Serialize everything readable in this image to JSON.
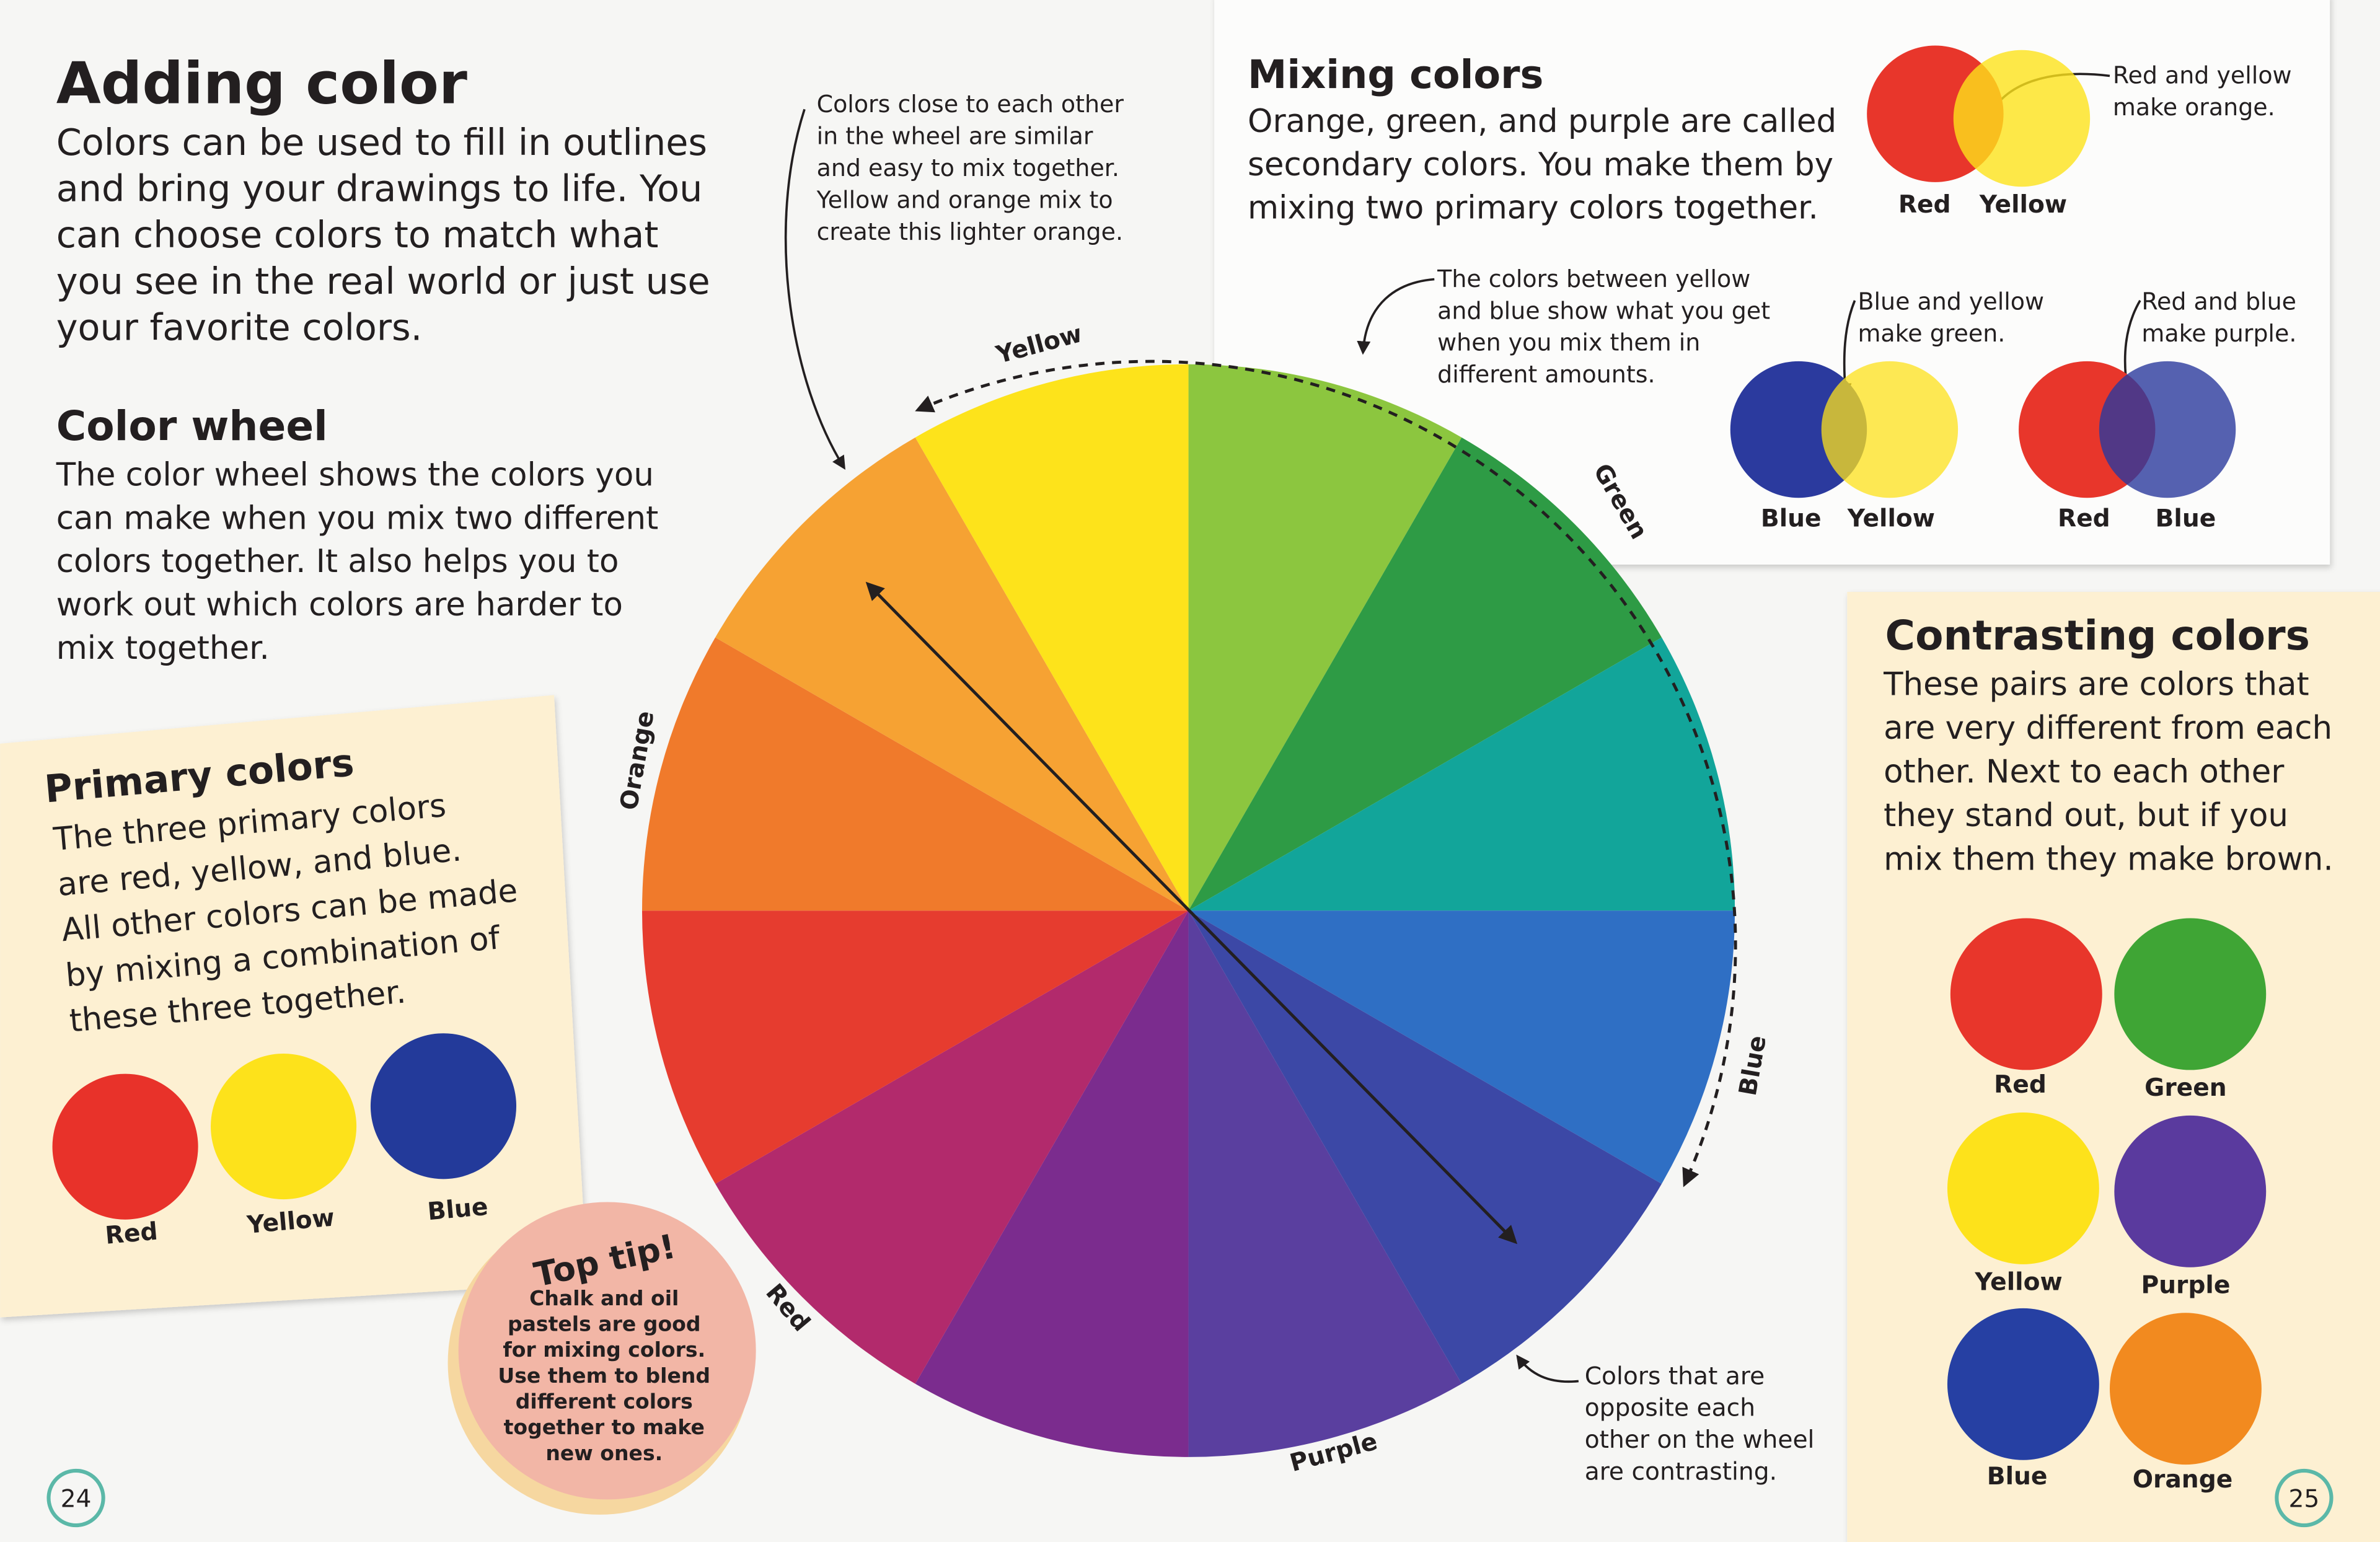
{
  "left_page": {
    "title": "Adding color",
    "intro": [
      "Colors can be used to fill in outlines",
      "and bring your drawings to life. You",
      "can choose colors to match what",
      "you see in the real world or just use",
      "your favorite colors."
    ],
    "wheel_heading": "Color wheel",
    "wheel_text": [
      "The color wheel shows the colors you",
      "can make when you mix two different",
      "colors together. It also helps you to",
      "work out which colors are harder to",
      "mix together."
    ],
    "primary": {
      "heading": "Primary colors",
      "text": [
        "The three primary colors",
        "are red, yellow, and blue.",
        "All other colors can be made",
        "by mixing a combination of",
        "these three together."
      ],
      "swatches": [
        "Red",
        "Yellow",
        "Blue"
      ]
    },
    "tip": {
      "heading": "Top tip!",
      "text": [
        "Chalk and oil",
        "pastels are good",
        "for mixing colors.",
        "Use them to blend",
        "different colors",
        "together to make",
        "new ones."
      ]
    },
    "page_number": 24
  },
  "wheel": {
    "labels": [
      "Yellow",
      "Green",
      "Blue",
      "Purple",
      "Red",
      "Orange"
    ],
    "note_similar": [
      "Colors close to each other",
      "in the wheel are similar",
      "and easy to mix together.",
      "Yellow and orange mix to",
      "create this lighter orange."
    ],
    "note_between": [
      "The colors between yellow",
      "and blue show what you get",
      "when you mix them in",
      "different amounts."
    ],
    "note_opposite": [
      "Colors that are",
      "opposite each",
      "other on the wheel",
      "are contrasting."
    ]
  },
  "mixing": {
    "heading": "Mixing colors",
    "text": [
      "Orange, green, and purple are called",
      "secondary colors. You make them by",
      "mixing two primary colors together."
    ],
    "examples": [
      {
        "note": [
          "Red and yellow",
          "make orange."
        ],
        "labels": [
          "Red",
          "Yellow"
        ]
      },
      {
        "note": [
          "Blue and yellow",
          "make green."
        ],
        "labels": [
          "Blue",
          "Yellow"
        ]
      },
      {
        "note": [
          "Red and blue",
          "make purple."
        ],
        "labels": [
          "Red",
          "Blue"
        ]
      }
    ]
  },
  "contrasting": {
    "heading": "Contrasting colors",
    "text": [
      "These pairs are colors that",
      "are very different from each",
      "other. Next to each other",
      "they stand out, but if you",
      "mix them they make brown."
    ],
    "swatches": [
      "Red",
      "Green",
      "Yellow",
      "Purple",
      "Blue",
      "Orange"
    ]
  },
  "right_page_number": 25
}
